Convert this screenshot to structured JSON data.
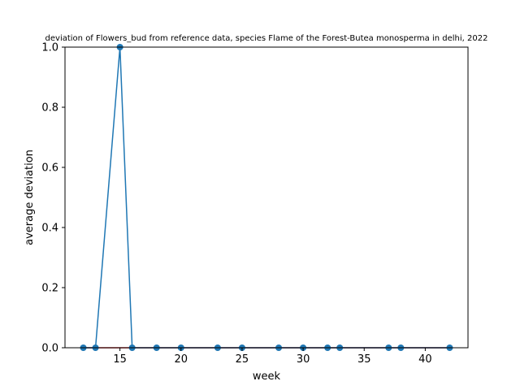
{
  "chart_data": {
    "type": "line",
    "title": "deviation of Flowers_bud from reference data, species Flame of the Forest-Butea monosperma in delhi, 2022",
    "xlabel": "week",
    "ylabel": "average deviation",
    "xlim": [
      10.5,
      43.5
    ],
    "ylim": [
      0.0,
      1.0
    ],
    "x_ticks": [
      15,
      20,
      25,
      30,
      35,
      40
    ],
    "y_ticks": [
      0.0,
      0.2,
      0.4,
      0.6,
      0.8,
      1.0
    ],
    "x_tick_labels": [
      "15",
      "20",
      "25",
      "30",
      "35",
      "40"
    ],
    "y_tick_labels": [
      "0.0",
      "0.2",
      "0.4",
      "0.6",
      "0.8",
      "1.0"
    ],
    "grid": false,
    "series": [
      {
        "color": "#1f77b4",
        "marker": "circle",
        "x": [
          12,
          13,
          15,
          16,
          18,
          20,
          23,
          25,
          28,
          30,
          32,
          33,
          37,
          38,
          42
        ],
        "y": [
          0,
          0,
          1,
          0,
          0,
          0,
          0,
          0,
          0,
          0,
          0,
          0,
          0,
          0,
          0
        ]
      }
    ],
    "reference_line": {
      "color": "#d62728",
      "y": 0
    }
  }
}
